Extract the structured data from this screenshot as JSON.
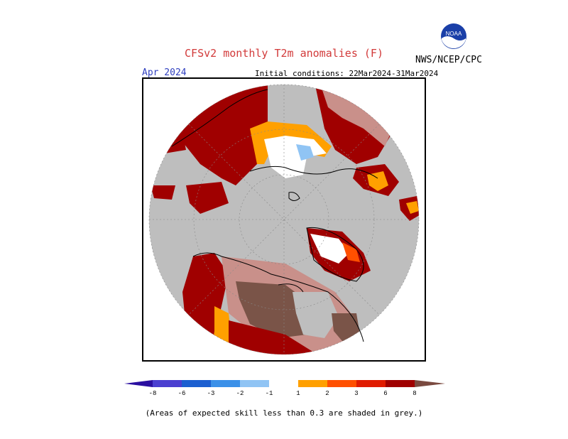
{
  "header": {
    "title": "CFSv2 monthly T2m anomalies (F)",
    "org": "NWS/NCEP/CPC",
    "logo_text": "NOAA",
    "month": "Apr 2024",
    "initial_conditions": "Initial conditions: 22Mar2024-31Mar2024"
  },
  "colorbar": {
    "labels": [
      "-8",
      "-6",
      "-3",
      "-2",
      "-1",
      "1",
      "2",
      "3",
      "6",
      "8"
    ],
    "colors": {
      "lt_-8": "#2a0fa0",
      "-8_-6": "#4b3fd0",
      "-6_-3": "#1c5fd0",
      "-3_-2": "#3b90e8",
      "-2_-1": "#90c4f4",
      "-1_1": "#ffffff",
      "1_2": "#ffa000",
      "2_3": "#ff5000",
      "3_6": "#e01c00",
      "6_8": "#a00000",
      "gt_8": "#c9908a",
      "gt_8b": "#7a4a40"
    }
  },
  "map": {
    "background": "#bebebe",
    "low_skill_grey": "#bebebe",
    "warm_dark": "#a00000",
    "warm_med": "#e01c00",
    "warm_orange": "#ffa000",
    "warm_pink": "#c9908a",
    "warm_brown": "#7a5448",
    "cool_light": "#90c4f4",
    "neutral": "#ffffff"
  },
  "footnote": "(Areas of expected skill less than 0.3 are shaded in grey.)"
}
